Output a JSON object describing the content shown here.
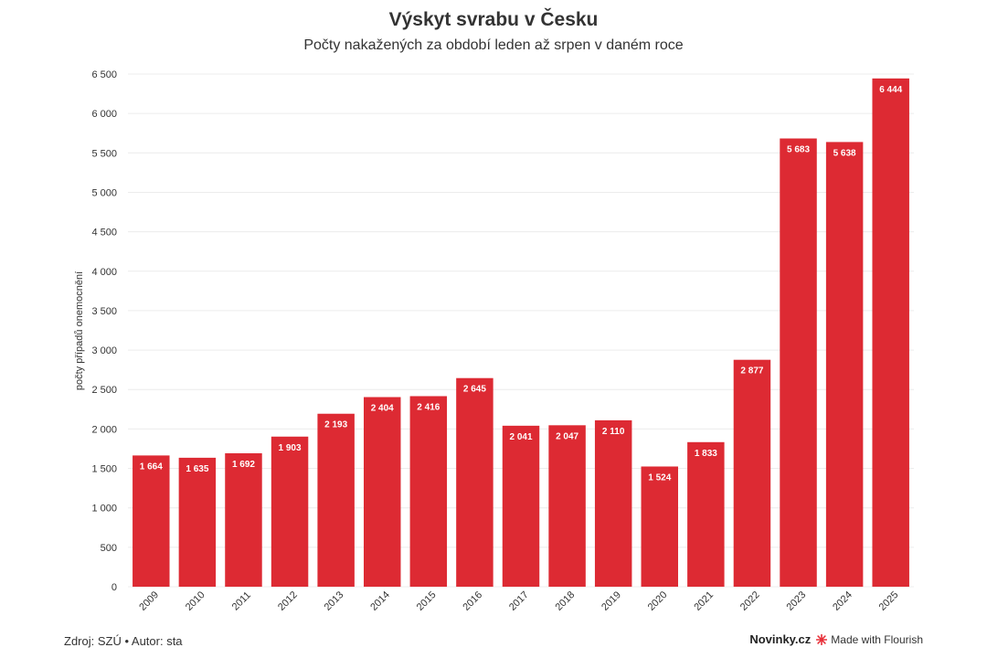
{
  "header": {
    "title": "Výskyt svrabu v Česku",
    "subtitle": "Počty nakažených za období leden až srpen v daném roce"
  },
  "footer": {
    "source": "Zdroj: SZÚ • Autor: sta",
    "brand": "Novinky.cz",
    "made_with": "Made with Flourish"
  },
  "colors": {
    "bar": "#dd2a33",
    "grid": "#ececec",
    "flourish_accent": "#e8313a"
  },
  "chart_data": {
    "type": "bar",
    "title": "Výskyt svrabu v Česku",
    "subtitle": "Počty nakažených za období leden až srpen v daném roce",
    "xlabel": "",
    "ylabel": "počty případů onemocnění",
    "ylim": [
      0,
      6500
    ],
    "yticks": [
      0,
      500,
      1000,
      1500,
      2000,
      2500,
      3000,
      3500,
      4000,
      4500,
      5000,
      5500,
      6000,
      6500
    ],
    "ytick_labels": [
      "0",
      "500",
      "1 000",
      "1 500",
      "2 000",
      "2 500",
      "3 000",
      "3 500",
      "4 000",
      "4 500",
      "5 000",
      "5 500",
      "6 000",
      "6 500"
    ],
    "categories": [
      "2009",
      "2010",
      "2011",
      "2012",
      "2013",
      "2014",
      "2015",
      "2016",
      "2017",
      "2018",
      "2019",
      "2020",
      "2021",
      "2022",
      "2023",
      "2024",
      "2025"
    ],
    "values": [
      1664,
      1635,
      1692,
      1903,
      2193,
      2404,
      2416,
      2645,
      2041,
      2047,
      2110,
      1524,
      1833,
      2877,
      5683,
      5638,
      6444
    ],
    "value_labels": [
      "1 664",
      "1 635",
      "1 692",
      "1 903",
      "2 193",
      "2 404",
      "2 416",
      "2 645",
      "2 041",
      "2 047",
      "2 110",
      "1 524",
      "1 833",
      "2 877",
      "5 683",
      "5 638",
      "6 444"
    ],
    "grid": true,
    "legend": "none"
  }
}
